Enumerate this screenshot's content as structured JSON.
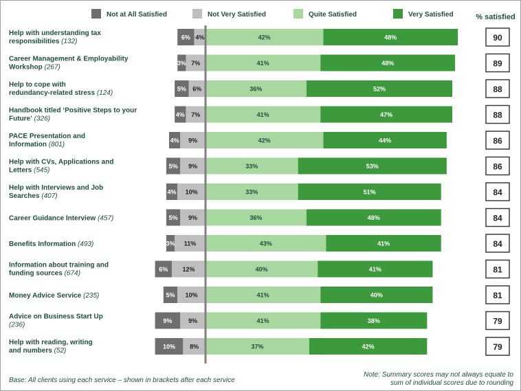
{
  "chart_data": {
    "type": "bar",
    "orientation": "horizontal",
    "stacked": "diverging",
    "legend_position": "top",
    "grid": false,
    "summary_header": "% satisfied",
    "series": [
      {
        "name": "Not at All Satisfied",
        "color": "#6e6e6e",
        "side": "negative"
      },
      {
        "name": "Not Very Satisfied",
        "color": "#bfbfbf",
        "side": "negative"
      },
      {
        "name": "Quite Satisfied",
        "color": "#a8d8a0",
        "side": "positive"
      },
      {
        "name": "Very Satisfied",
        "color": "#3c9a3c",
        "side": "positive"
      }
    ],
    "categories": [
      {
        "label_lines": [
          "Help with understanding tax",
          "responsibilities"
        ],
        "n": "(132)",
        "values": [
          6,
          4,
          42,
          48
        ],
        "satisfied": 90
      },
      {
        "label_lines": [
          "Career Management & Employability",
          "Workshop"
        ],
        "n": "(267)",
        "values": [
          3,
          7,
          41,
          48
        ],
        "satisfied": 89
      },
      {
        "label_lines": [
          "Help to cope with",
          "redundancy-related stress"
        ],
        "n": "(124)",
        "values": [
          5,
          6,
          36,
          52
        ],
        "satisfied": 88
      },
      {
        "label_lines": [
          "Handbook titled ‘Positive Steps to your",
          "Future’"
        ],
        "n": "(326)",
        "values": [
          4,
          7,
          41,
          47
        ],
        "satisfied": 88
      },
      {
        "label_lines": [
          "PACE Presentation and",
          "Information"
        ],
        "n": "(801)",
        "values": [
          4,
          9,
          42,
          44
        ],
        "satisfied": 86
      },
      {
        "label_lines": [
          "Help with CVs, Applications and",
          "Letters"
        ],
        "n": "(545)",
        "values": [
          5,
          9,
          33,
          53
        ],
        "satisfied": 86
      },
      {
        "label_lines": [
          "Help with Interviews and Job",
          "Searches"
        ],
        "n": "(407)",
        "values": [
          4,
          10,
          33,
          51
        ],
        "satisfied": 84
      },
      {
        "label_lines": [
          "Career Guidance Interview"
        ],
        "n": "(457)",
        "values": [
          5,
          9,
          36,
          48
        ],
        "satisfied": 84
      },
      {
        "label_lines": [
          "Benefits Information"
        ],
        "n": "(493)",
        "values": [
          3,
          11,
          43,
          41
        ],
        "satisfied": 84
      },
      {
        "label_lines": [
          "Information about training and",
          "funding sources"
        ],
        "n": "(674)",
        "values": [
          6,
          12,
          40,
          41
        ],
        "satisfied": 81
      },
      {
        "label_lines": [
          "Money Advice Service"
        ],
        "n": "(235)",
        "values": [
          5,
          10,
          41,
          40
        ],
        "satisfied": 81
      },
      {
        "label_lines": [
          "Advice on Business Start Up"
        ],
        "n": "(236)",
        "n_on_new_line": true,
        "values": [
          9,
          9,
          41,
          38
        ],
        "satisfied": 79
      },
      {
        "label_lines": [
          "Help with reading, writing",
          "and numbers"
        ],
        "n": "(52)",
        "values": [
          10,
          8,
          37,
          42
        ],
        "satisfied": 79
      }
    ],
    "footnotes": {
      "base": "Base: All clients using each service – shown in brackets after each service",
      "note_lines": [
        "Note: Summary scores may not always equate to",
        "sum of individual scores due to rounding"
      ]
    }
  }
}
